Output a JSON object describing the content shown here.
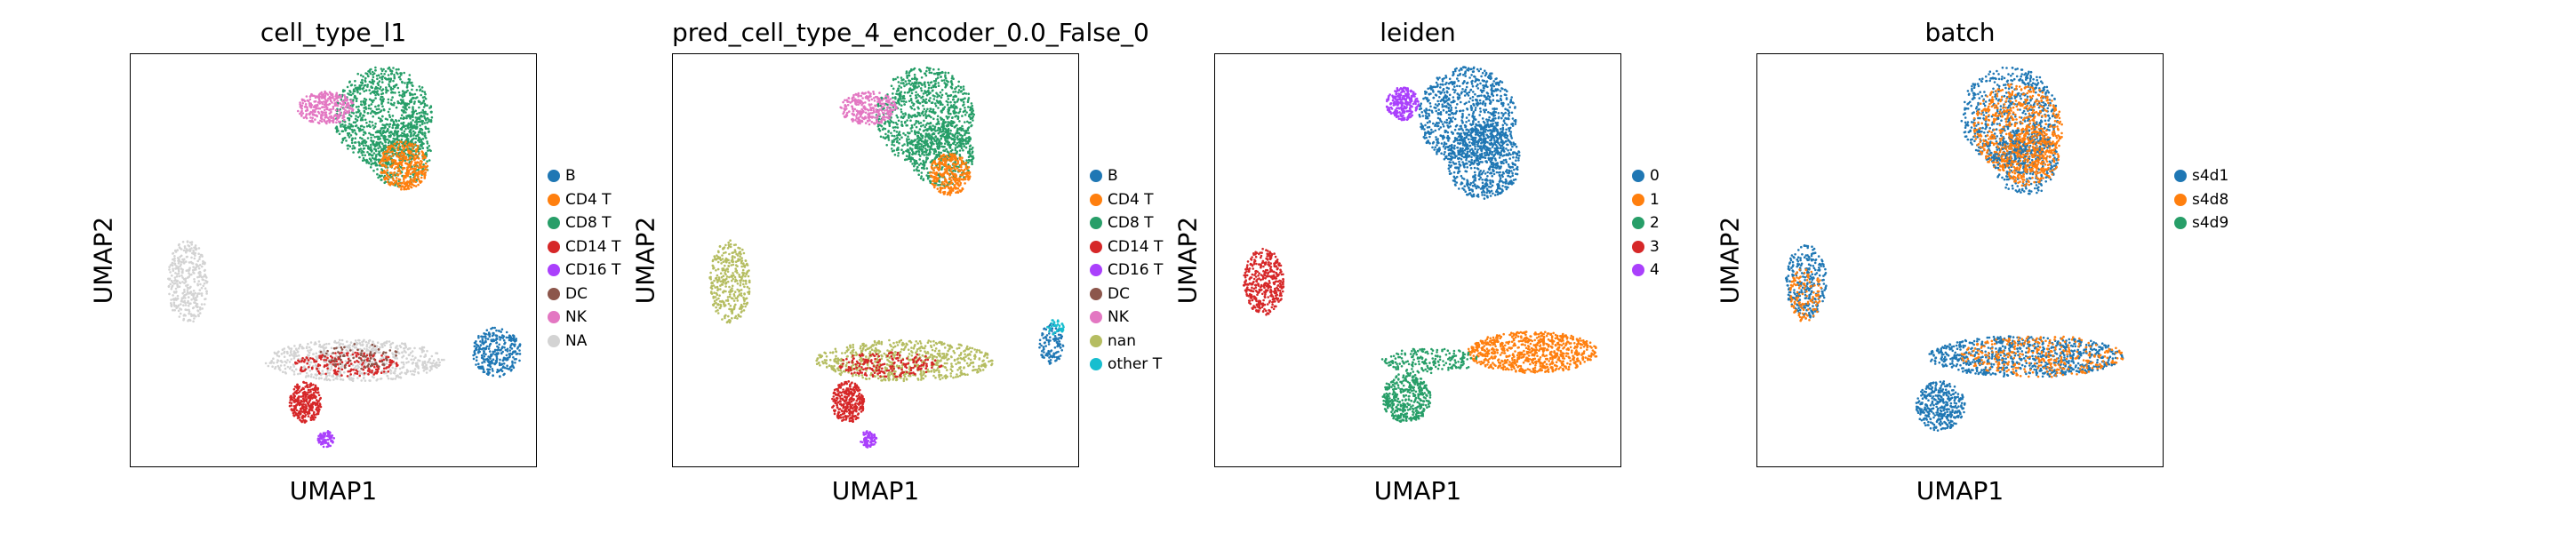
{
  "chart_data": [
    {
      "type": "scatter",
      "title": "cell_type_l1",
      "xlabel": "UMAP1",
      "ylabel": "UMAP2",
      "legend_position": "right",
      "grid": false,
      "legend": [
        {
          "name": "B",
          "color": "#1f77b4"
        },
        {
          "name": "CD4 T",
          "color": "#ff7f0e"
        },
        {
          "name": "CD8 T",
          "color": "#279e68"
        },
        {
          "name": "CD14 T",
          "color": "#d62728"
        },
        {
          "name": "CD16 T",
          "color": "#aa40fc"
        },
        {
          "name": "DC",
          "color": "#8c564b"
        },
        {
          "name": "NK",
          "color": "#e377c2"
        },
        {
          "name": "NA",
          "color": "#d3d3d3"
        }
      ],
      "regions": [
        {
          "category": 2,
          "cx": 0.62,
          "cy": 0.15,
          "rx": 0.12,
          "ry": 0.12,
          "n": 900
        },
        {
          "category": 2,
          "cx": 0.66,
          "cy": 0.24,
          "rx": 0.08,
          "ry": 0.08,
          "n": 400
        },
        {
          "category": 1,
          "cx": 0.67,
          "cy": 0.27,
          "rx": 0.06,
          "ry": 0.06,
          "n": 350
        },
        {
          "category": 6,
          "cx": 0.48,
          "cy": 0.13,
          "rx": 0.07,
          "ry": 0.04,
          "n": 300
        },
        {
          "category": 7,
          "cx": 0.14,
          "cy": 0.55,
          "rx": 0.05,
          "ry": 0.1,
          "n": 350
        },
        {
          "category": 7,
          "cx": 0.55,
          "cy": 0.74,
          "rx": 0.22,
          "ry": 0.05,
          "n": 700
        },
        {
          "category": 0,
          "cx": 0.9,
          "cy": 0.72,
          "rx": 0.06,
          "ry": 0.06,
          "n": 300
        },
        {
          "category": 3,
          "cx": 0.43,
          "cy": 0.84,
          "rx": 0.04,
          "ry": 0.05,
          "n": 300
        },
        {
          "category": 3,
          "cx": 0.53,
          "cy": 0.75,
          "rx": 0.13,
          "ry": 0.03,
          "n": 200
        },
        {
          "category": 5,
          "cx": 0.56,
          "cy": 0.73,
          "rx": 0.1,
          "ry": 0.03,
          "n": 80
        },
        {
          "category": 4,
          "cx": 0.48,
          "cy": 0.93,
          "rx": 0.02,
          "ry": 0.02,
          "n": 80
        }
      ]
    },
    {
      "type": "scatter",
      "title": "pred_cell_type_4_encoder_0.0_False_0",
      "xlabel": "UMAP1",
      "ylabel": "UMAP2",
      "legend_position": "right",
      "grid": false,
      "legend": [
        {
          "name": "B",
          "color": "#1f77b4"
        },
        {
          "name": "CD4 T",
          "color": "#ff7f0e"
        },
        {
          "name": "CD8 T",
          "color": "#279e68"
        },
        {
          "name": "CD14 T",
          "color": "#d62728"
        },
        {
          "name": "CD16 T",
          "color": "#aa40fc"
        },
        {
          "name": "DC",
          "color": "#8c564b"
        },
        {
          "name": "NK",
          "color": "#e377c2"
        },
        {
          "name": "nan",
          "color": "#b5bd61"
        },
        {
          "name": "other T",
          "color": "#17becf"
        }
      ],
      "regions": [
        {
          "category": 2,
          "cx": 0.62,
          "cy": 0.15,
          "rx": 0.12,
          "ry": 0.12,
          "n": 900
        },
        {
          "category": 2,
          "cx": 0.66,
          "cy": 0.24,
          "rx": 0.08,
          "ry": 0.08,
          "n": 400
        },
        {
          "category": 1,
          "cx": 0.68,
          "cy": 0.29,
          "rx": 0.05,
          "ry": 0.05,
          "n": 300
        },
        {
          "category": 6,
          "cx": 0.48,
          "cy": 0.13,
          "rx": 0.07,
          "ry": 0.04,
          "n": 300
        },
        {
          "category": 7,
          "cx": 0.14,
          "cy": 0.55,
          "rx": 0.05,
          "ry": 0.1,
          "n": 350
        },
        {
          "category": 7,
          "cx": 0.57,
          "cy": 0.74,
          "rx": 0.22,
          "ry": 0.05,
          "n": 700
        },
        {
          "category": 0,
          "cx": 0.93,
          "cy": 0.7,
          "rx": 0.03,
          "ry": 0.05,
          "n": 120
        },
        {
          "category": 8,
          "cx": 0.94,
          "cy": 0.66,
          "rx": 0.02,
          "ry": 0.02,
          "n": 40
        },
        {
          "category": 3,
          "cx": 0.43,
          "cy": 0.84,
          "rx": 0.04,
          "ry": 0.05,
          "n": 300
        },
        {
          "category": 3,
          "cx": 0.53,
          "cy": 0.75,
          "rx": 0.13,
          "ry": 0.03,
          "n": 200
        },
        {
          "category": 4,
          "cx": 0.48,
          "cy": 0.93,
          "rx": 0.02,
          "ry": 0.02,
          "n": 80
        }
      ]
    },
    {
      "type": "scatter",
      "title": "leiden",
      "xlabel": "UMAP1",
      "ylabel": "UMAP2",
      "legend_position": "right",
      "grid": false,
      "legend": [
        {
          "name": "0",
          "color": "#1f77b4"
        },
        {
          "name": "1",
          "color": "#ff7f0e"
        },
        {
          "name": "2",
          "color": "#279e68"
        },
        {
          "name": "3",
          "color": "#d62728"
        },
        {
          "name": "4",
          "color": "#aa40fc"
        }
      ],
      "regions": [
        {
          "category": 0,
          "cx": 0.62,
          "cy": 0.15,
          "rx": 0.12,
          "ry": 0.12,
          "n": 900
        },
        {
          "category": 0,
          "cx": 0.66,
          "cy": 0.26,
          "rx": 0.09,
          "ry": 0.09,
          "n": 600
        },
        {
          "category": 4,
          "cx": 0.46,
          "cy": 0.12,
          "rx": 0.04,
          "ry": 0.04,
          "n": 250
        },
        {
          "category": 3,
          "cx": 0.12,
          "cy": 0.55,
          "rx": 0.05,
          "ry": 0.08,
          "n": 400
        },
        {
          "category": 1,
          "cx": 0.78,
          "cy": 0.72,
          "rx": 0.16,
          "ry": 0.05,
          "n": 800
        },
        {
          "category": 2,
          "cx": 0.47,
          "cy": 0.83,
          "rx": 0.06,
          "ry": 0.06,
          "n": 400
        },
        {
          "category": 2,
          "cx": 0.53,
          "cy": 0.74,
          "rx": 0.12,
          "ry": 0.03,
          "n": 200
        }
      ]
    },
    {
      "type": "scatter",
      "title": "batch",
      "xlabel": "UMAP1",
      "ylabel": "UMAP2",
      "legend_position": "right",
      "grid": false,
      "legend": [
        {
          "name": "s4d1",
          "color": "#1f77b4"
        },
        {
          "name": "s4d8",
          "color": "#ff7f0e"
        },
        {
          "name": "s4d9",
          "color": "#279e68"
        }
      ],
      "regions": [
        {
          "category": 0,
          "cx": 0.62,
          "cy": 0.15,
          "rx": 0.12,
          "ry": 0.12,
          "n": 700
        },
        {
          "category": 1,
          "cx": 0.64,
          "cy": 0.18,
          "rx": 0.11,
          "ry": 0.11,
          "n": 600
        },
        {
          "category": 0,
          "cx": 0.66,
          "cy": 0.26,
          "rx": 0.08,
          "ry": 0.08,
          "n": 300
        },
        {
          "category": 1,
          "cx": 0.67,
          "cy": 0.25,
          "rx": 0.07,
          "ry": 0.07,
          "n": 300
        },
        {
          "category": 0,
          "cx": 0.12,
          "cy": 0.55,
          "rx": 0.05,
          "ry": 0.09,
          "n": 300
        },
        {
          "category": 1,
          "cx": 0.12,
          "cy": 0.58,
          "rx": 0.04,
          "ry": 0.07,
          "n": 120
        },
        {
          "category": 0,
          "cx": 0.66,
          "cy": 0.73,
          "rx": 0.24,
          "ry": 0.05,
          "n": 800
        },
        {
          "category": 1,
          "cx": 0.7,
          "cy": 0.73,
          "rx": 0.2,
          "ry": 0.05,
          "n": 350
        },
        {
          "category": 0,
          "cx": 0.45,
          "cy": 0.85,
          "rx": 0.06,
          "ry": 0.06,
          "n": 350
        }
      ]
    }
  ]
}
